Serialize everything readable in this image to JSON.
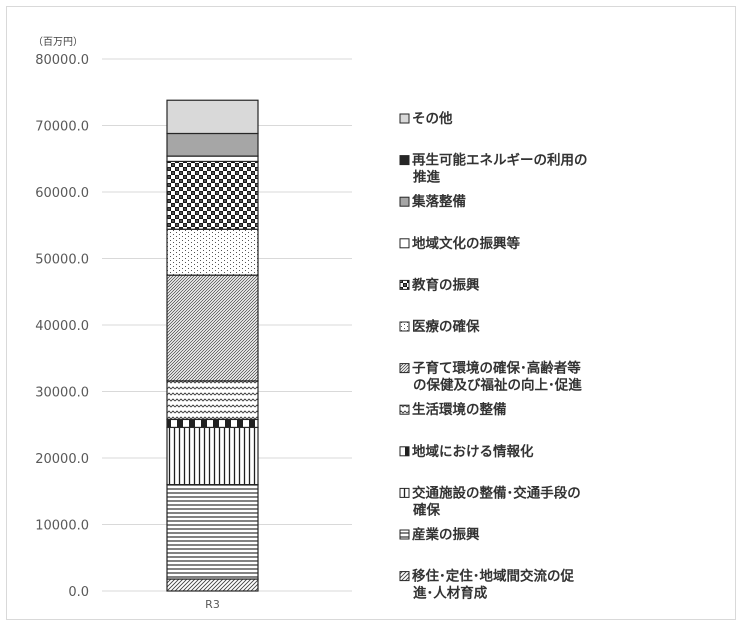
{
  "chart_data": {
    "type": "bar",
    "stacked": true,
    "unit_label": "（百万円）",
    "categories": [
      "R3"
    ],
    "ylim": [
      0,
      80000
    ],
    "yticks": [
      0,
      10000,
      20000,
      30000,
      40000,
      50000,
      60000,
      70000,
      80000
    ],
    "tick_format": "0.0",
    "grid": true,
    "legend_position": "right",
    "series": [
      {
        "name": "移住･定住･地域間交流の促進･人材育成",
        "legend_lines": [
          "移住･定住･地域間交流の促",
          "進･人材育成"
        ],
        "values": [
          1800
        ],
        "pattern": "diag-fine"
      },
      {
        "name": "産業の振興",
        "legend_lines": [
          "産業の振興"
        ],
        "values": [
          14200
        ],
        "pattern": "hlines"
      },
      {
        "name": "交通施設の整備･交通手段の確保",
        "legend_lines": [
          "交通施設の整備･交通手段の",
          "確保"
        ],
        "values": [
          8600
        ],
        "pattern": "vlines"
      },
      {
        "name": "地域における情報化",
        "legend_lines": [
          "地域における情報化"
        ],
        "values": [
          1200
        ],
        "pattern": "vbars"
      },
      {
        "name": "生活環境の整備",
        "legend_lines": [
          "生活環境の整備"
        ],
        "values": [
          5800
        ],
        "pattern": "zigzag"
      },
      {
        "name": "子育て環境の確保･高齢者等の保健及び福祉の向上･促進",
        "legend_lines": [
          "子育て環境の確保･高齢者等",
          "の保健及び福祉の向上･促進"
        ],
        "values": [
          15900
        ],
        "pattern": "diag-dense"
      },
      {
        "name": "医療の確保",
        "legend_lines": [
          "医療の確保"
        ],
        "values": [
          6900
        ],
        "pattern": "dots"
      },
      {
        "name": "教育の振興",
        "legend_lines": [
          "教育の振興"
        ],
        "values": [
          10200
        ],
        "pattern": "checker"
      },
      {
        "name": "地域文化の振興等",
        "legend_lines": [
          "地域文化の振興等"
        ],
        "values": [
          800
        ],
        "pattern": "white"
      },
      {
        "name": "集落整備",
        "legend_lines": [
          "集落整備"
        ],
        "values": [
          3400
        ],
        "pattern": "gray"
      },
      {
        "name": "再生可能エネルギーの利用の推進",
        "legend_lines": [
          "再生可能エネルギーの利用の",
          "推進"
        ],
        "values": [
          0
        ],
        "pattern": "black"
      },
      {
        "name": "その他",
        "legend_lines": [
          "その他"
        ],
        "values": [
          5000
        ],
        "pattern": "lightgray"
      }
    ],
    "legend_order": [
      11,
      10,
      9,
      8,
      7,
      6,
      5,
      4,
      3,
      2,
      1,
      0
    ]
  }
}
